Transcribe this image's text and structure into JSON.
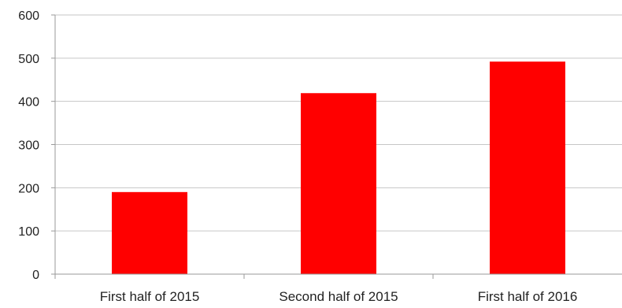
{
  "chart_data": {
    "type": "bar",
    "categories": [
      "First half of 2015",
      "Second half of 2015",
      "First half of 2016"
    ],
    "values": [
      190,
      419,
      492
    ],
    "ylim": [
      0,
      600
    ],
    "yticks": [
      0,
      100,
      200,
      300,
      400,
      500,
      600
    ],
    "grid": true,
    "legend": "none",
    "colors": {
      "bar": "#ff0000",
      "grid": "#c6c6c6",
      "axis": "#9a9a9a",
      "text": "#222222"
    }
  }
}
